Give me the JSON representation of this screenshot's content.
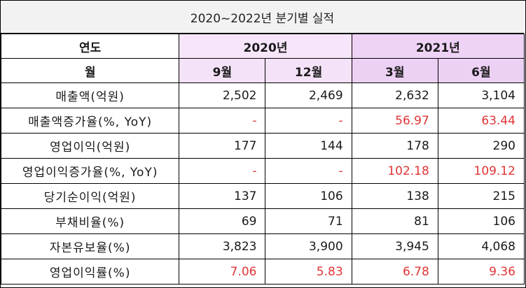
{
  "title": "2020~2022년 분기별 실적",
  "header": {
    "year_label": "연도",
    "month_label": "월",
    "years": [
      "2020년",
      "2021년"
    ],
    "months": [
      "9월",
      "12월",
      "3월",
      "6월"
    ]
  },
  "rows": [
    {
      "label": "매출액(억원)",
      "values": [
        "2,502",
        "2,469",
        "2,632",
        "3,104"
      ]
    },
    {
      "label": "매출액증가율(%, YoY)",
      "values": [
        "-",
        "-",
        "56.97",
        "63.44"
      ]
    },
    {
      "label": "영업이익(억원)",
      "values": [
        "177",
        "144",
        "178",
        "290"
      ]
    },
    {
      "label": "영업이익증가율(%, YoY)",
      "values": [
        "-",
        "-",
        "102.18",
        "109.12"
      ]
    },
    {
      "label": "당기순이익(억원)",
      "values": [
        "137",
        "106",
        "138",
        "215"
      ]
    },
    {
      "label": "부채비율(%)",
      "values": [
        "69",
        "71",
        "81",
        "106"
      ]
    },
    {
      "label": "자본유보율(%)",
      "values": [
        "3,823",
        "3,900",
        "3,945",
        "4,068"
      ]
    },
    {
      "label": "영업이익률(%)",
      "values": [
        "7.06",
        "5.83",
        "6.78",
        "9.36"
      ]
    }
  ],
  "colors": {
    "highlight_text": "#e03535",
    "year_2020_bg": "#f7e6fb",
    "year_2021_bg": "#efd3f7",
    "title_bg": "#f2f2f2"
  }
}
